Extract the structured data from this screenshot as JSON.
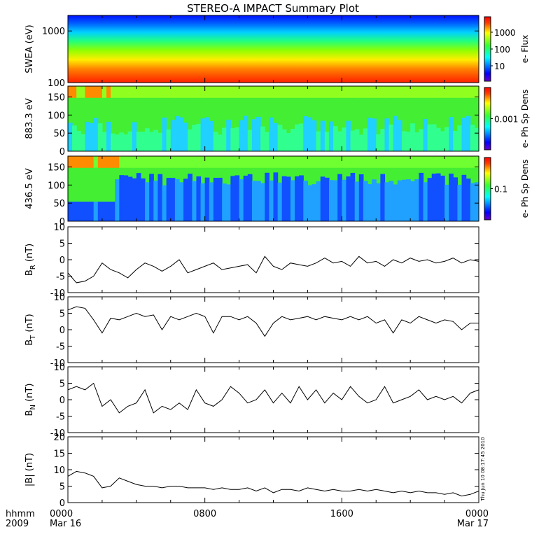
{
  "title": "STEREO-A IMPACT Summary Plot",
  "footer": {
    "row_label_top": "hhmm",
    "row_label_bottom": "2009",
    "x_ticks": [
      {
        "top": "0000",
        "bottom": "Mar 16",
        "hour": 0
      },
      {
        "top": "0800",
        "bottom": "",
        "hour": 8
      },
      {
        "top": "1600",
        "bottom": "",
        "hour": 16
      },
      {
        "top": "0000",
        "bottom": "Mar 17",
        "hour": 24
      }
    ],
    "timestamp": "Thu Jun 10 08:17:45 2010"
  },
  "chart_data": [
    {
      "type": "heatmap",
      "ylabel": "SWEA (eV)",
      "yscale": "log",
      "ylim": [
        100,
        2000
      ],
      "y_ticks": [
        100,
        1000
      ],
      "y_tick_labels": [
        "100",
        "1000"
      ],
      "colorbar": {
        "label": "e- Flux",
        "scale": "log",
        "ticks": [
          "1000",
          "100",
          "10"
        ]
      }
    },
    {
      "type": "heatmap",
      "ylabel": "883.3 eV",
      "ylim": [
        0,
        180
      ],
      "y_ticks": [
        0,
        50,
        100,
        150
      ],
      "y_tick_labels": [
        "0",
        "50",
        "100",
        "150"
      ],
      "colorbar": {
        "label": "e- Ph Sp Dens",
        "scale": "log",
        "ticks": [
          "0.001"
        ]
      }
    },
    {
      "type": "heatmap",
      "ylabel": "436.5 eV",
      "ylim": [
        0,
        180
      ],
      "y_ticks": [
        0,
        50,
        100,
        150
      ],
      "y_tick_labels": [
        "0",
        "50",
        "100",
        "150"
      ],
      "colorbar": {
        "label": "e- Ph Sp Dens",
        "scale": "log",
        "ticks": [
          "0.1"
        ]
      }
    },
    {
      "type": "line",
      "ylabel": "BR (nT)",
      "ylabel_base": "B",
      "ylabel_sub": "R",
      "ylabel_unit": " (nT)",
      "ylim": [
        -10,
        10
      ],
      "y_ticks": [
        -10,
        -5,
        0,
        5,
        10
      ],
      "y_tick_labels": [
        "-10",
        "-5",
        "0",
        "5",
        "10"
      ],
      "x_hours": [
        0,
        0.5,
        1,
        1.5,
        2,
        2.5,
        3,
        3.5,
        4,
        4.5,
        5,
        5.5,
        6,
        6.5,
        7,
        7.5,
        8,
        8.5,
        9,
        9.5,
        10,
        10.5,
        11,
        11.5,
        12,
        12.5,
        13,
        13.5,
        14,
        14.5,
        15,
        15.5,
        16,
        16.5,
        17,
        17.5,
        18,
        18.5,
        19,
        19.5,
        20,
        20.5,
        21,
        21.5,
        22,
        22.5,
        23,
        23.5,
        24
      ],
      "y": [
        -4,
        -7,
        -6.5,
        -5,
        -1,
        -3,
        -4,
        -5.5,
        -3,
        -1,
        -2,
        -3.5,
        -2,
        0,
        -4,
        -3,
        -2,
        -1,
        -3,
        -2.5,
        -2,
        -1.5,
        -4,
        1,
        -2,
        -3,
        -1,
        -1.5,
        -2,
        -1,
        0.5,
        -1,
        -0.5,
        -2,
        1,
        -1,
        -0.5,
        -2,
        0,
        -1,
        0.5,
        -0.5,
        0,
        -1,
        -0.5,
        0.5,
        -1,
        0,
        -0.5
      ]
    },
    {
      "type": "line",
      "ylabel": "BT (nT)",
      "ylabel_base": "B",
      "ylabel_sub": "T",
      "ylabel_unit": " (nT)",
      "ylim": [
        -10,
        10
      ],
      "y_ticks": [
        -10,
        -5,
        0,
        5,
        10
      ],
      "y_tick_labels": [
        "-10",
        "-5",
        "0",
        "5",
        "10"
      ],
      "x_hours": [
        0,
        0.5,
        1,
        1.5,
        2,
        2.5,
        3,
        3.5,
        4,
        4.5,
        5,
        5.5,
        6,
        6.5,
        7,
        7.5,
        8,
        8.5,
        9,
        9.5,
        10,
        10.5,
        11,
        11.5,
        12,
        12.5,
        13,
        13.5,
        14,
        14.5,
        15,
        15.5,
        16,
        16.5,
        17,
        17.5,
        18,
        18.5,
        19,
        19.5,
        20,
        20.5,
        21,
        21.5,
        22,
        22.5,
        23,
        23.5,
        24
      ],
      "y": [
        6,
        7,
        6.5,
        3,
        -1,
        3.5,
        3,
        4,
        5,
        4,
        4.5,
        0,
        4,
        3,
        4,
        5,
        4,
        -1,
        4,
        4,
        3,
        4,
        2,
        -2,
        2,
        4,
        3,
        3.5,
        4,
        3,
        4,
        3.5,
        3,
        4,
        3,
        4,
        2,
        3,
        -1,
        3,
        2,
        4,
        3,
        2,
        3,
        2.5,
        0,
        2,
        2
      ]
    },
    {
      "type": "line",
      "ylabel": "BN (nT)",
      "ylabel_base": "B",
      "ylabel_sub": "N",
      "ylabel_unit": " (nT)",
      "ylim": [
        -10,
        10
      ],
      "y_ticks": [
        -10,
        -5,
        0,
        5,
        10
      ],
      "y_tick_labels": [
        "-10",
        "-5",
        "0",
        "5",
        "10"
      ],
      "x_hours": [
        0,
        0.5,
        1,
        1.5,
        2,
        2.5,
        3,
        3.5,
        4,
        4.5,
        5,
        5.5,
        6,
        6.5,
        7,
        7.5,
        8,
        8.5,
        9,
        9.5,
        10,
        10.5,
        11,
        11.5,
        12,
        12.5,
        13,
        13.5,
        14,
        14.5,
        15,
        15.5,
        16,
        16.5,
        17,
        17.5,
        18,
        18.5,
        19,
        19.5,
        20,
        20.5,
        21,
        21.5,
        22,
        22.5,
        23,
        23.5,
        24
      ],
      "y": [
        3,
        4,
        3,
        5,
        -2,
        0,
        -4,
        -2,
        -1,
        3,
        -4,
        -2,
        -3,
        -1,
        -3,
        3,
        -1,
        -2,
        0,
        4,
        2,
        -1,
        0,
        3,
        -1,
        2,
        -1,
        4,
        0,
        3,
        -1,
        2,
        0,
        4,
        1,
        -1,
        0,
        4,
        -1,
        0,
        1,
        3,
        0,
        1,
        0,
        1,
        -1,
        2,
        3
      ]
    },
    {
      "type": "line",
      "ylabel": "|B| (nT)",
      "ylabel_base": "|B|",
      "ylabel_sub": "",
      "ylabel_unit": " (nT)",
      "ylim": [
        0,
        20
      ],
      "y_ticks": [
        0,
        5,
        10,
        15,
        20
      ],
      "y_tick_labels": [
        "0",
        "5",
        "10",
        "15",
        "20"
      ],
      "x_hours": [
        0,
        0.5,
        1,
        1.5,
        2,
        2.5,
        3,
        3.5,
        4,
        4.5,
        5,
        5.5,
        6,
        6.5,
        7,
        7.5,
        8,
        8.5,
        9,
        9.5,
        10,
        10.5,
        11,
        11.5,
        12,
        12.5,
        13,
        13.5,
        14,
        14.5,
        15,
        15.5,
        16,
        16.5,
        17,
        17.5,
        18,
        18.5,
        19,
        19.5,
        20,
        20.5,
        21,
        21.5,
        22,
        22.5,
        23,
        23.5,
        24
      ],
      "y": [
        8,
        9.5,
        9,
        8,
        4.5,
        5,
        7.5,
        6.5,
        5.5,
        5,
        5,
        4.5,
        5,
        5,
        4.5,
        4.5,
        4.5,
        4,
        4.5,
        4,
        4,
        4.5,
        3.5,
        4.5,
        3,
        4,
        4,
        3.5,
        4.5,
        4,
        3.5,
        4,
        3.5,
        3.5,
        4,
        3.5,
        4,
        3.5,
        3,
        3.5,
        3,
        3.5,
        3,
        3,
        2.5,
        3,
        2,
        2.5,
        3.5
      ]
    }
  ]
}
